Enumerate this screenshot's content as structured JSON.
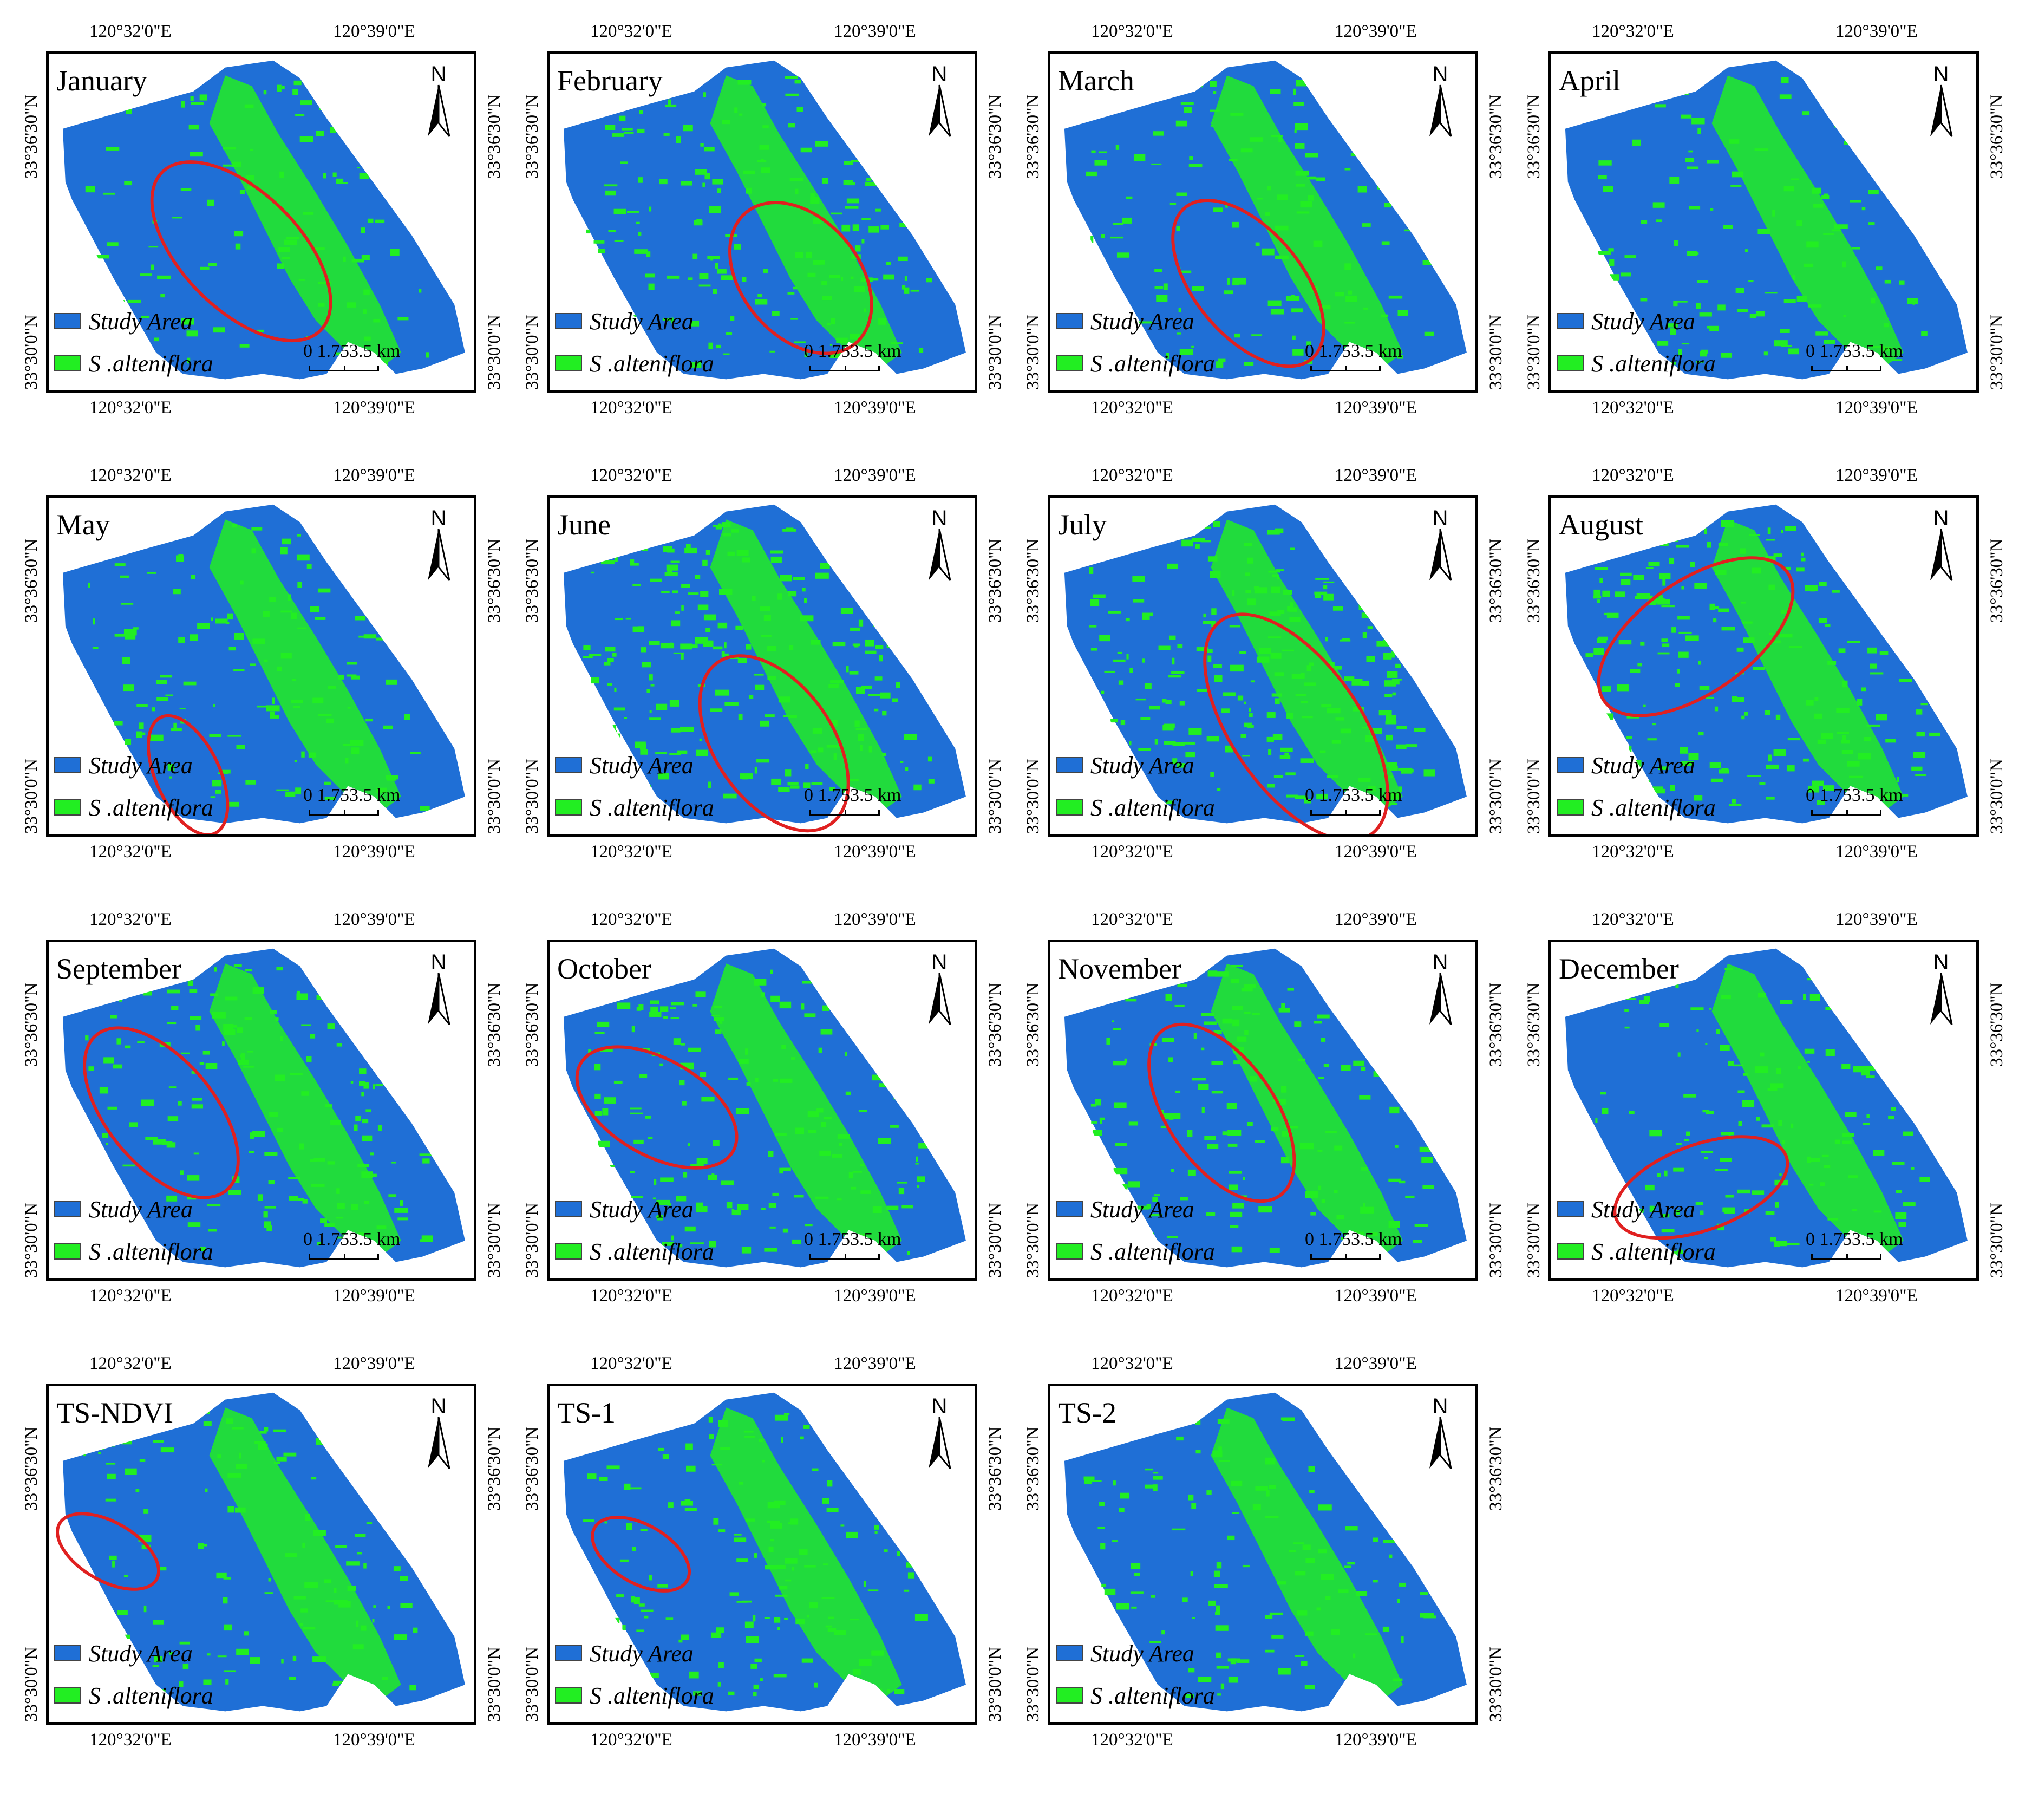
{
  "colors": {
    "study_area": "#1f6fd6",
    "s_alteniflora": "#22ee22",
    "ellipse": "#e02020"
  },
  "labels": {
    "lon_left": "120°32'0\"E",
    "lon_right": "120°39'0\"E",
    "lat_top": "33°36'30\"N",
    "lat_bottom": "33°30'0\"N",
    "legend_study_area": "Study Area",
    "legend_s_alteniflora": "S .alteniflora",
    "scale": "0 1.753.5 km",
    "north": "N"
  },
  "panels": [
    {
      "title": "January"
    },
    {
      "title": "February"
    },
    {
      "title": "March"
    },
    {
      "title": "April"
    },
    {
      "title": "May"
    },
    {
      "title": "June"
    },
    {
      "title": "July"
    },
    {
      "title": "August"
    },
    {
      "title": "September"
    },
    {
      "title": "October"
    },
    {
      "title": "November"
    },
    {
      "title": "December"
    },
    {
      "title": "TS-NDVI"
    },
    {
      "title": "TS-1"
    },
    {
      "title": "TS-2"
    }
  ]
}
